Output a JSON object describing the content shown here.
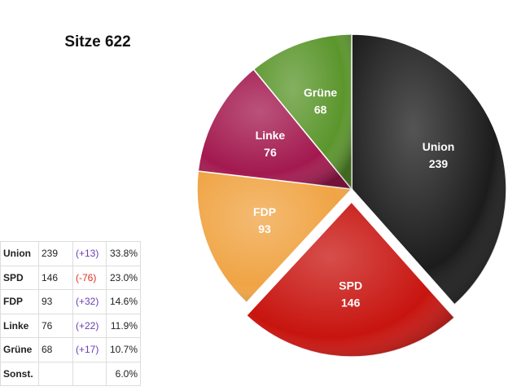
{
  "chart_data": {
    "type": "pie",
    "title": "Sitze 622",
    "categories": [
      "Union",
      "SPD",
      "FDP",
      "Linke",
      "Grüne"
    ],
    "values": [
      239,
      146,
      93,
      76,
      68
    ],
    "colors": [
      "#1c1c1c",
      "#c8140f",
      "#f0a444",
      "#a3194f",
      "#5b962c"
    ],
    "exploded": "SPD"
  },
  "table": {
    "rows": [
      [
        "Union",
        "239",
        "(+13)",
        "33.8%"
      ],
      [
        "SPD",
        "146",
        "(-76)",
        "23.0%"
      ],
      [
        "FDP",
        "93",
        "(+32)",
        "14.6%"
      ],
      [
        "Linke",
        "76",
        "(+22)",
        "11.9%"
      ],
      [
        "Grüne",
        "68",
        "(+17)",
        "10.7%"
      ],
      [
        "Sonst.",
        null,
        null,
        "6.0%"
      ]
    ]
  }
}
